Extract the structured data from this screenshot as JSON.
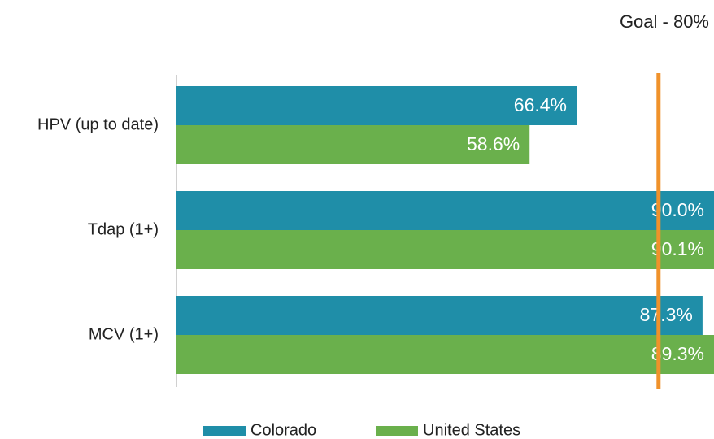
{
  "chart_data": {
    "type": "hbar",
    "categories": [
      "HPV (up to date)",
      "Tdap (1+)",
      "MCV (1+)"
    ],
    "series": [
      {
        "name": "Colorado",
        "color": "#1f8ea8",
        "values": [
          66.4,
          90.0,
          87.3
        ],
        "value_labels": [
          "66.4%",
          "90.0%",
          "87.3%"
        ]
      },
      {
        "name": "United States",
        "color": "#6ab04c",
        "values": [
          58.6,
          90.1,
          89.3
        ],
        "value_labels": [
          "58.6%",
          "90.1%",
          "89.3%"
        ]
      }
    ],
    "xlim": [
      0,
      100
    ],
    "goal": {
      "value": 80,
      "label": "Goal - 80%",
      "color": "#f0922b"
    },
    "legend": "bottom"
  }
}
